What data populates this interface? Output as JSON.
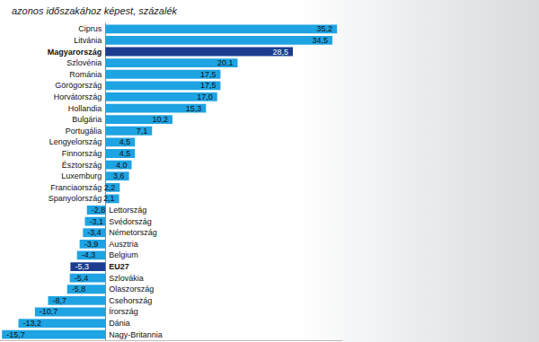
{
  "chart_data": {
    "type": "bar",
    "orientation": "horizontal",
    "subtitle": "azonos időszakához képest, százalék",
    "categories": [
      "Ciprus",
      "Litvánia",
      "Magyarország",
      "Szlovénia",
      "Románia",
      "Görögország",
      "Horvátország",
      "Hollandia",
      "Bulgária",
      "Portugália",
      "Lengyelország",
      "Finnország",
      "Észtország",
      "Luxemburg",
      "Franciaország",
      "Spanyolország",
      "Lettország",
      "Svédország",
      "Németország",
      "Ausztria",
      "Belgium",
      "EU27",
      "Szlovákia",
      "Olaszország",
      "Csehország",
      "Írország",
      "Dánia",
      "Nagy-Britannia"
    ],
    "values": [
      35.2,
      34.5,
      28.5,
      20.1,
      17.5,
      17.5,
      17.0,
      15.3,
      10.2,
      7.1,
      4.5,
      4.5,
      4.0,
      3.6,
      2.2,
      2.1,
      -2.8,
      -3.1,
      -3.4,
      -3.9,
      -4.3,
      -5.3,
      -5.4,
      -5.8,
      -8.7,
      -10.7,
      -13.2,
      -15.7
    ],
    "value_labels": [
      "35,2",
      "34,5",
      "28,5",
      "20,1",
      "17,5",
      "17,5",
      "17,0",
      "15,3",
      "10,2",
      "7,1",
      "4,5",
      "4,5",
      "4,0",
      "3,6",
      "2,2",
      "2,1",
      "-2,8",
      "-3,1",
      "-3,4",
      "-3,9",
      "-4,3",
      "-5,3",
      "-5,4",
      "-5,8",
      "-8,7",
      "-10,7",
      "-13,2",
      "-15,7"
    ],
    "colors": [
      "#1ea3e3",
      "#1ea3e3",
      "#1b3c8f",
      "#1ea3e3",
      "#1ea3e3",
      "#1ea3e3",
      "#1ea3e3",
      "#1ea3e3",
      "#1ea3e3",
      "#1ea3e3",
      "#1ea3e3",
      "#1ea3e3",
      "#1ea3e3",
      "#1ea3e3",
      "#1ea3e3",
      "#1ea3e3",
      "#1ea3e3",
      "#1ea3e3",
      "#1ea3e3",
      "#1ea3e3",
      "#1ea3e3",
      "#1b3c8f",
      "#1ea3e3",
      "#1ea3e3",
      "#1ea3e3",
      "#1ea3e3",
      "#1ea3e3",
      "#1ea3e3"
    ],
    "xlim": [
      -16,
      36
    ],
    "grid": false,
    "data_labels": true,
    "tick_labels": false
  }
}
